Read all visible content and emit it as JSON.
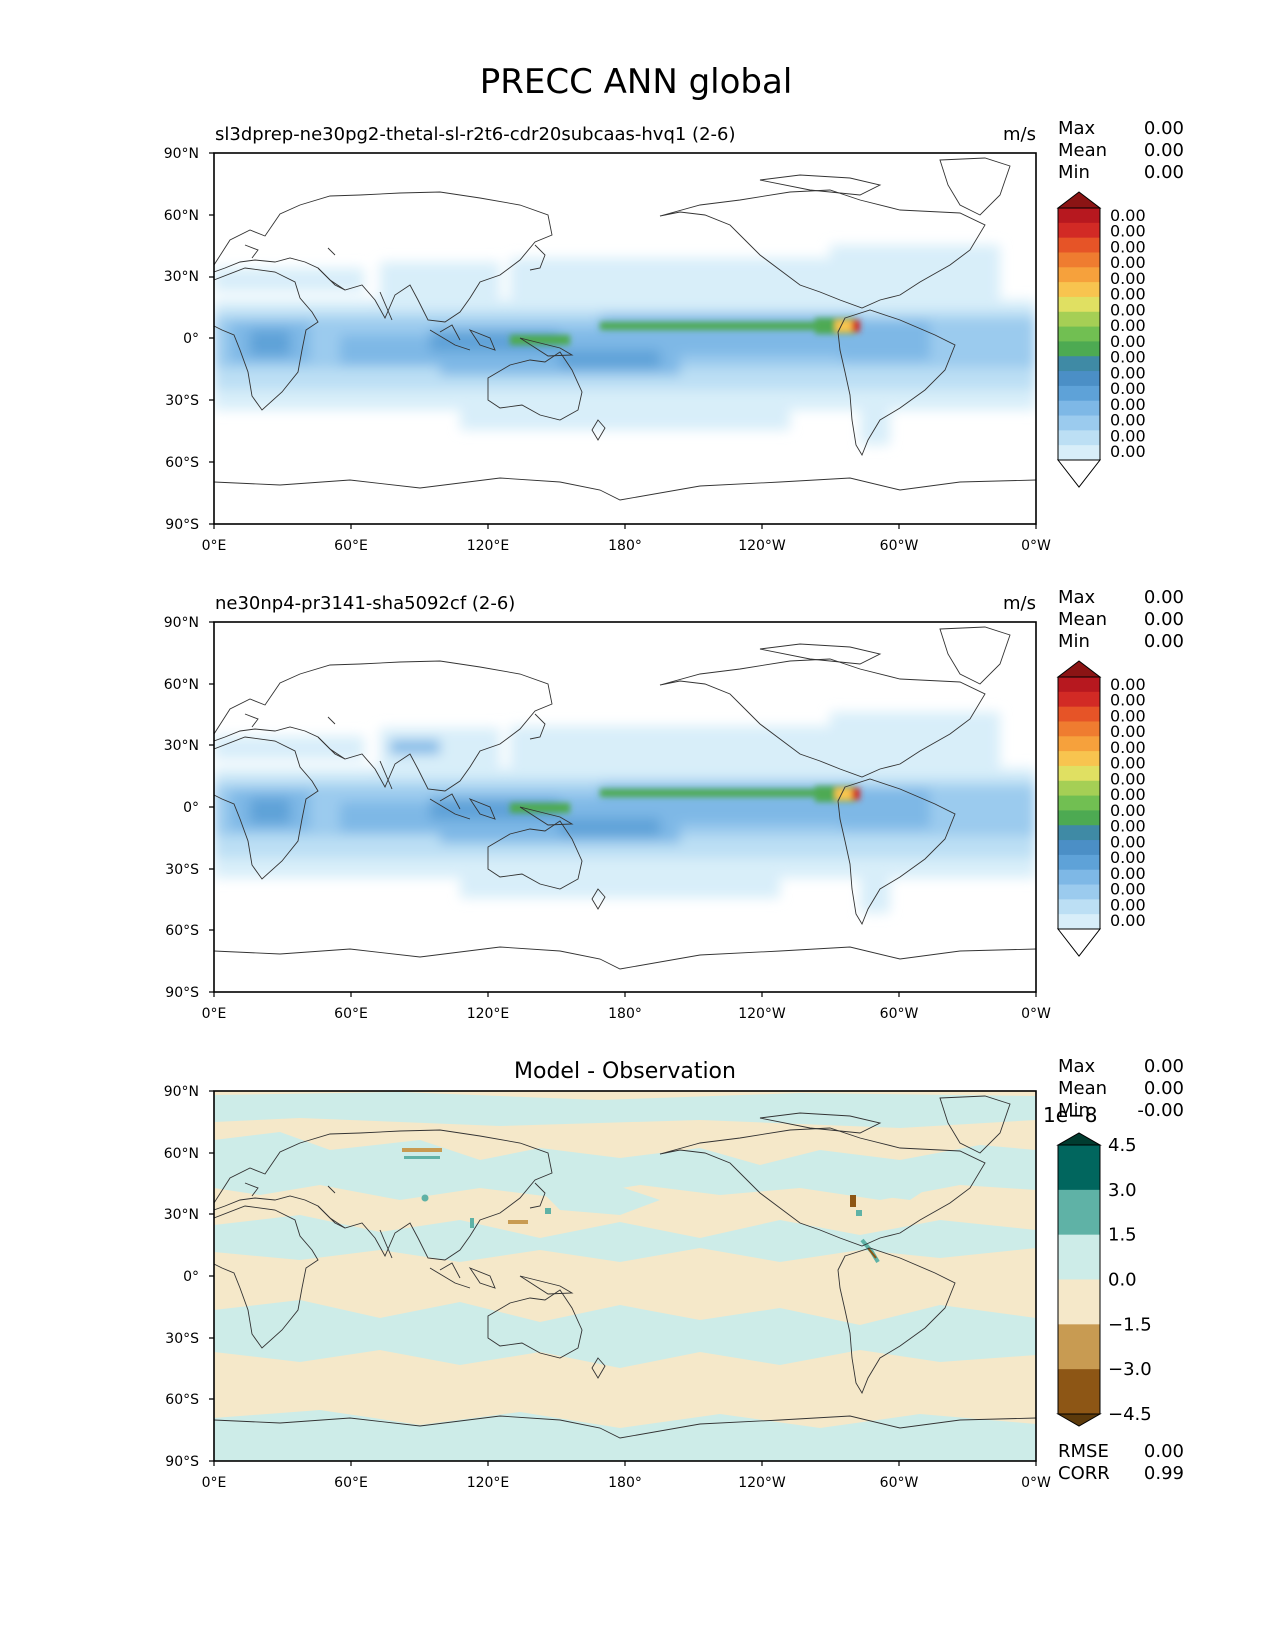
{
  "figure": {
    "title": "PRECC ANN global",
    "lat_ticks": [
      "90°N",
      "60°N",
      "30°N",
      "0°",
      "30°S",
      "60°S",
      "90°S"
    ],
    "lon_ticks": [
      "0°E",
      "60°E",
      "120°E",
      "180°",
      "120°W",
      "60°W",
      "0°W"
    ],
    "colors": {
      "precip_levels": [
        "#ffffff",
        "#d8eef9",
        "#bcdff4",
        "#9bcbee",
        "#7eb8e6",
        "#5ea2d8",
        "#4b8fc6",
        "#3f8aa5",
        "#4daa52",
        "#71bf52",
        "#a5cf55",
        "#e0e062",
        "#f8c44f",
        "#f6a13c",
        "#ef7c30",
        "#e65427",
        "#d22a25",
        "#b7181f",
        "#8b1414"
      ],
      "diff_levels": [
        "#5c3a0b",
        "#8d5615",
        "#c89b52",
        "#f5e8c9",
        "#cdece8",
        "#5fb2a6",
        "#01665e",
        "#003c30"
      ]
    }
  },
  "panels": [
    {
      "id": "test",
      "title_left": "sl3dprep-ne30pg2-thetal-sl-r2t6-cdr20subcaas-hvq1 (2-6)",
      "title_center": "",
      "units": "m/s",
      "stats": [
        {
          "label": "Max",
          "value": "0.00"
        },
        {
          "label": "Mean",
          "value": "0.00"
        },
        {
          "label": "Min",
          "value": "0.00"
        }
      ],
      "colorbar": {
        "type": "precip",
        "ticks": [
          "0.00",
          "0.00",
          "0.00",
          "0.00",
          "0.00",
          "0.00",
          "0.00",
          "0.00",
          "0.00",
          "0.00",
          "0.00",
          "0.00",
          "0.00",
          "0.00",
          "0.00",
          "0.00"
        ]
      }
    },
    {
      "id": "ref",
      "title_left": "ne30np4-pr3141-sha5092cf (2-6)",
      "title_center": "",
      "units": "m/s",
      "stats": [
        {
          "label": "Max",
          "value": "0.00"
        },
        {
          "label": "Mean",
          "value": "0.00"
        },
        {
          "label": "Min",
          "value": "0.00"
        }
      ],
      "colorbar": {
        "type": "precip",
        "ticks": [
          "0.00",
          "0.00",
          "0.00",
          "0.00",
          "0.00",
          "0.00",
          "0.00",
          "0.00",
          "0.00",
          "0.00",
          "0.00",
          "0.00",
          "0.00",
          "0.00",
          "0.00",
          "0.00"
        ]
      }
    },
    {
      "id": "diff",
      "title_left": "",
      "title_center": "Model - Observation",
      "units": "",
      "stats": [
        {
          "label": "Max",
          "value": "0.00"
        },
        {
          "label": "Mean",
          "value": "0.00"
        },
        {
          "label": "Min",
          "value": "-0.00"
        }
      ],
      "colorbar": {
        "type": "diff",
        "offset": "1e−8",
        "ticks": [
          "4.5",
          "3.0",
          "1.5",
          "0.0",
          "−1.5",
          "−3.0",
          "−4.5"
        ]
      },
      "extra_stats": [
        {
          "label": "RMSE",
          "value": "0.00"
        },
        {
          "label": "CORR",
          "value": "0.99"
        }
      ]
    }
  ]
}
